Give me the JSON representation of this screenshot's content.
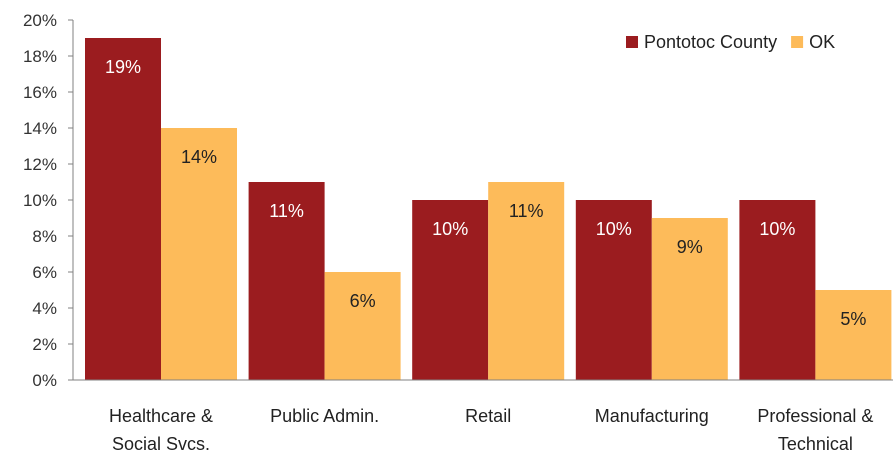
{
  "chart_data": {
    "type": "bar",
    "categories": [
      [
        "Healthcare &",
        "Social Svcs."
      ],
      [
        "Public Admin."
      ],
      [
        "Retail"
      ],
      [
        "Manufacturing"
      ],
      [
        "Professional &",
        "Technical"
      ]
    ],
    "series": [
      {
        "name": "Pontotoc County",
        "color": "#9B1C1F",
        "label_color": "#ffffff",
        "values": [
          19,
          11,
          10,
          10,
          10
        ],
        "labels": [
          "19%",
          "11%",
          "10%",
          "10%",
          "10%"
        ]
      },
      {
        "name": "OK",
        "color": "#FDBB5A",
        "label_color": "#222222",
        "values": [
          14,
          6,
          11,
          9,
          5
        ],
        "labels": [
          "14%",
          "6%",
          "11%",
          "9%",
          "5%"
        ]
      }
    ],
    "y_ticks": [
      "0%",
      "2%",
      "4%",
      "6%",
      "8%",
      "10%",
      "12%",
      "14%",
      "16%",
      "18%",
      "20%"
    ],
    "ylim": [
      0,
      20
    ],
    "grid": false,
    "legend_position": "top-right"
  }
}
